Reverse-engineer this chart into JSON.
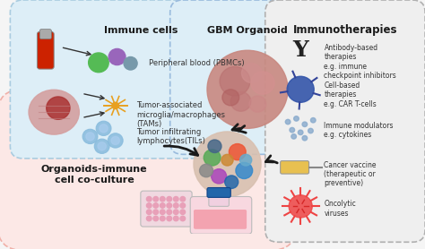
{
  "title": "GBM Organoid",
  "bg_color": "#f5f5f5",
  "immune_cells_title": "Immune cells",
  "immune_cells_items": [
    "Peripheral blood (PBMCs)",
    "Tumor-associated\nmicroglia/macrophages\n(TAMs)",
    "Tumor infiltrating\nlymphocytes(TILs)"
  ],
  "immunotherapies_title": "Immunotherapies",
  "immunotherapies_items": [
    "Antibody-based\ntherapies\ne.g. immune\ncheckpoint inhibitors",
    "Cell-based\ntherapies\ne.g. CAR T-cells",
    "Immune modulators\ne.g. cytokines",
    "Cancer vaccine\n(therapeutic or\npreventive)",
    "Oncolytic\nviruses"
  ],
  "bottom_label": "Organoids-immune\ncell co-culture",
  "immune_box_color": "#ddeef7",
  "immune_box_border": "#aacce0",
  "immuno_box_color": "#efefef",
  "immuno_box_border": "#b0b0b0",
  "bottom_box_color": "#fce8e6",
  "bottom_box_border": "#f0b0a8",
  "center_box_color": "#ddeef7",
  "center_box_border": "#99bbdd",
  "arrow_color": "#1a1a1a",
  "title_fontsize": 8,
  "item_fontsize": 6,
  "label_fontsize": 8
}
